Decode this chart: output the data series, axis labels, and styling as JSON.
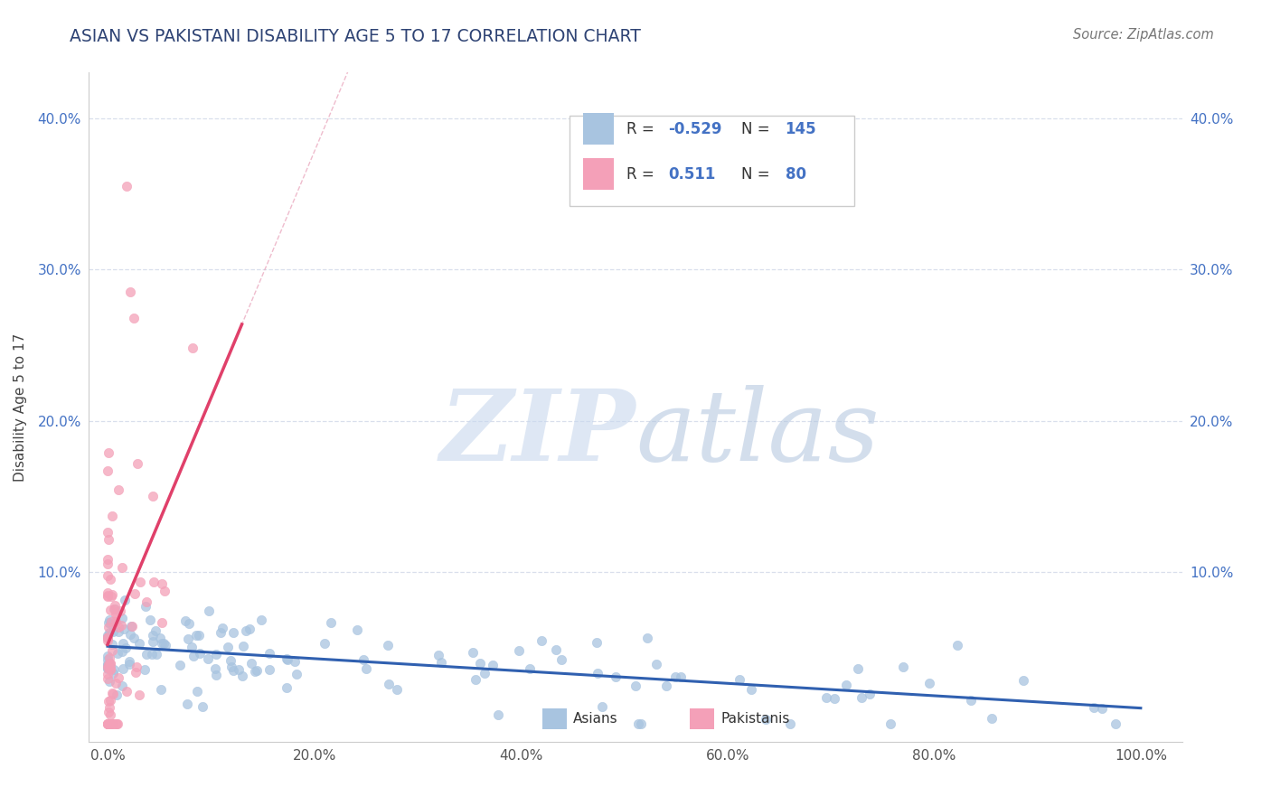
{
  "title": "ASIAN VS PAKISTANI DISABILITY AGE 5 TO 17 CORRELATION CHART",
  "source_text": "Source: ZipAtlas.com",
  "ylabel": "Disability Age 5 to 17",
  "asian_color": "#a8c4e0",
  "pakistani_color": "#f4a0b8",
  "asian_line_color": "#3060b0",
  "pakistani_line_color": "#e0406a",
  "asian_R": -0.529,
  "asian_N": 145,
  "pakistani_R": 0.511,
  "pakistani_N": 80,
  "title_color": "#2e4374",
  "tick_color": "#4472c4",
  "background_color": "#ffffff",
  "grid_color": "#d0d8e8",
  "watermark_zip_color": "#c8d8ee",
  "watermark_atlas_color": "#b0c4de"
}
